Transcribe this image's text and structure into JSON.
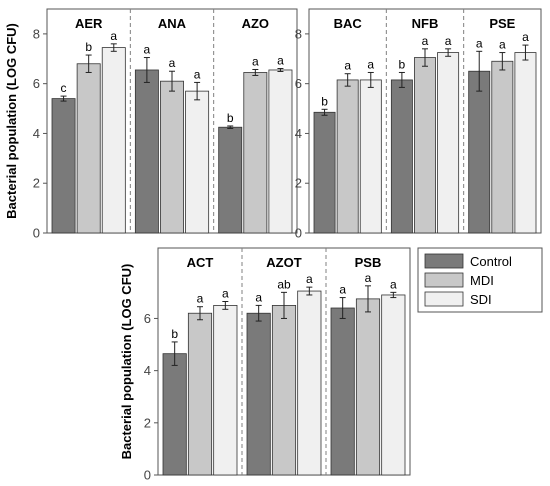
{
  "colors": {
    "Control": "#7a7a7a",
    "MDI": "#c8c8c8",
    "SDI": "#f0f0f0",
    "bar_stroke": "#333333",
    "frame": "#555555",
    "divider": "#808080"
  },
  "legend": {
    "items": [
      "Control",
      "MDI",
      "SDI"
    ],
    "placement": "right of bottom panel"
  },
  "chart_data": [
    {
      "type": "bar",
      "panel": "top-left",
      "ylabel": "Bacterial population (LOG CFU)",
      "ylim": [
        0,
        9
      ],
      "yticks": [
        0,
        2,
        4,
        6,
        8
      ],
      "series_names": [
        "Control",
        "MDI",
        "SDI"
      ],
      "groups": [
        {
          "name": "AER",
          "values": [
            5.4,
            6.8,
            7.45
          ],
          "errors": [
            0.1,
            0.35,
            0.15
          ],
          "letters": [
            "c",
            "b",
            "a"
          ]
        },
        {
          "name": "ANA",
          "values": [
            6.55,
            6.1,
            5.7
          ],
          "errors": [
            0.5,
            0.4,
            0.35
          ],
          "letters": [
            "a",
            "a",
            "a"
          ]
        },
        {
          "name": "AZO",
          "values": [
            4.25,
            6.45,
            6.55
          ],
          "errors": [
            0.05,
            0.12,
            0.06
          ],
          "letters": [
            "b",
            "a",
            "a"
          ]
        }
      ]
    },
    {
      "type": "bar",
      "panel": "top-right",
      "ylabel": "",
      "ylim": [
        0,
        9
      ],
      "yticks": [
        0,
        2,
        4,
        6,
        8
      ],
      "series_names": [
        "Control",
        "MDI",
        "SDI"
      ],
      "groups": [
        {
          "name": "BAC",
          "values": [
            4.85,
            6.15,
            6.15
          ],
          "errors": [
            0.12,
            0.25,
            0.3
          ],
          "letters": [
            "b",
            "a",
            "a"
          ]
        },
        {
          "name": "NFB",
          "values": [
            6.15,
            7.05,
            7.25
          ],
          "errors": [
            0.3,
            0.35,
            0.15
          ],
          "letters": [
            "b",
            "a",
            "a"
          ]
        },
        {
          "name": "PSE",
          "values": [
            6.5,
            6.9,
            7.25
          ],
          "errors": [
            0.8,
            0.35,
            0.3
          ],
          "letters": [
            "a",
            "a",
            "a"
          ]
        }
      ]
    },
    {
      "type": "bar",
      "panel": "bottom",
      "ylabel": "Bacterial population (LOG CFU)",
      "ylim": [
        0,
        8.7
      ],
      "yticks": [
        0,
        2,
        4,
        6
      ],
      "series_names": [
        "Control",
        "MDI",
        "SDI"
      ],
      "groups": [
        {
          "name": "ACT",
          "values": [
            4.65,
            6.2,
            6.5
          ],
          "errors": [
            0.45,
            0.25,
            0.15
          ],
          "letters": [
            "b",
            "a",
            "a"
          ]
        },
        {
          "name": "AZOT",
          "values": [
            6.2,
            6.5,
            7.05
          ],
          "errors": [
            0.3,
            0.5,
            0.15
          ],
          "letters": [
            "a",
            "ab",
            "a"
          ]
        },
        {
          "name": "PSB",
          "values": [
            6.4,
            6.75,
            6.9
          ],
          "errors": [
            0.4,
            0.5,
            0.1
          ],
          "letters": [
            "a",
            "a",
            "a"
          ]
        }
      ]
    }
  ]
}
